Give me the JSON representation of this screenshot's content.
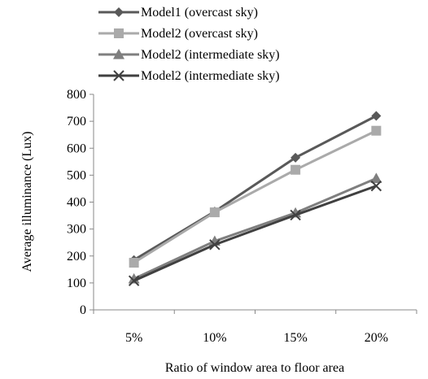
{
  "chart_data": {
    "type": "line",
    "title": "",
    "xlabel": "Ratio of window area to floor area",
    "ylabel": "Average illuminance (Lux)",
    "categories": [
      "5%",
      "10%",
      "15%",
      "20%"
    ],
    "ylim": [
      0,
      800
    ],
    "yticks": [
      "0",
      "100",
      "200",
      "300",
      "400",
      "500",
      "600",
      "700",
      "800"
    ],
    "grid": false,
    "legend_position": "top",
    "series": [
      {
        "name": "Model1 (overcast sky)",
        "values": [
          185,
          365,
          565,
          720
        ],
        "color": "#595959",
        "marker": "diamond"
      },
      {
        "name": "Model2 (overcast sky)",
        "values": [
          175,
          362,
          520,
          665
        ],
        "color": "#aaaaaa",
        "marker": "square"
      },
      {
        "name": "Model2 (intermediate sky)",
        "values": [
          115,
          255,
          360,
          488
        ],
        "color": "#7f7f7f",
        "marker": "triangle"
      },
      {
        "name": "Model2 (intermediate sky)",
        "values": [
          108,
          242,
          352,
          460
        ],
        "color": "#404040",
        "marker": "x"
      }
    ]
  }
}
